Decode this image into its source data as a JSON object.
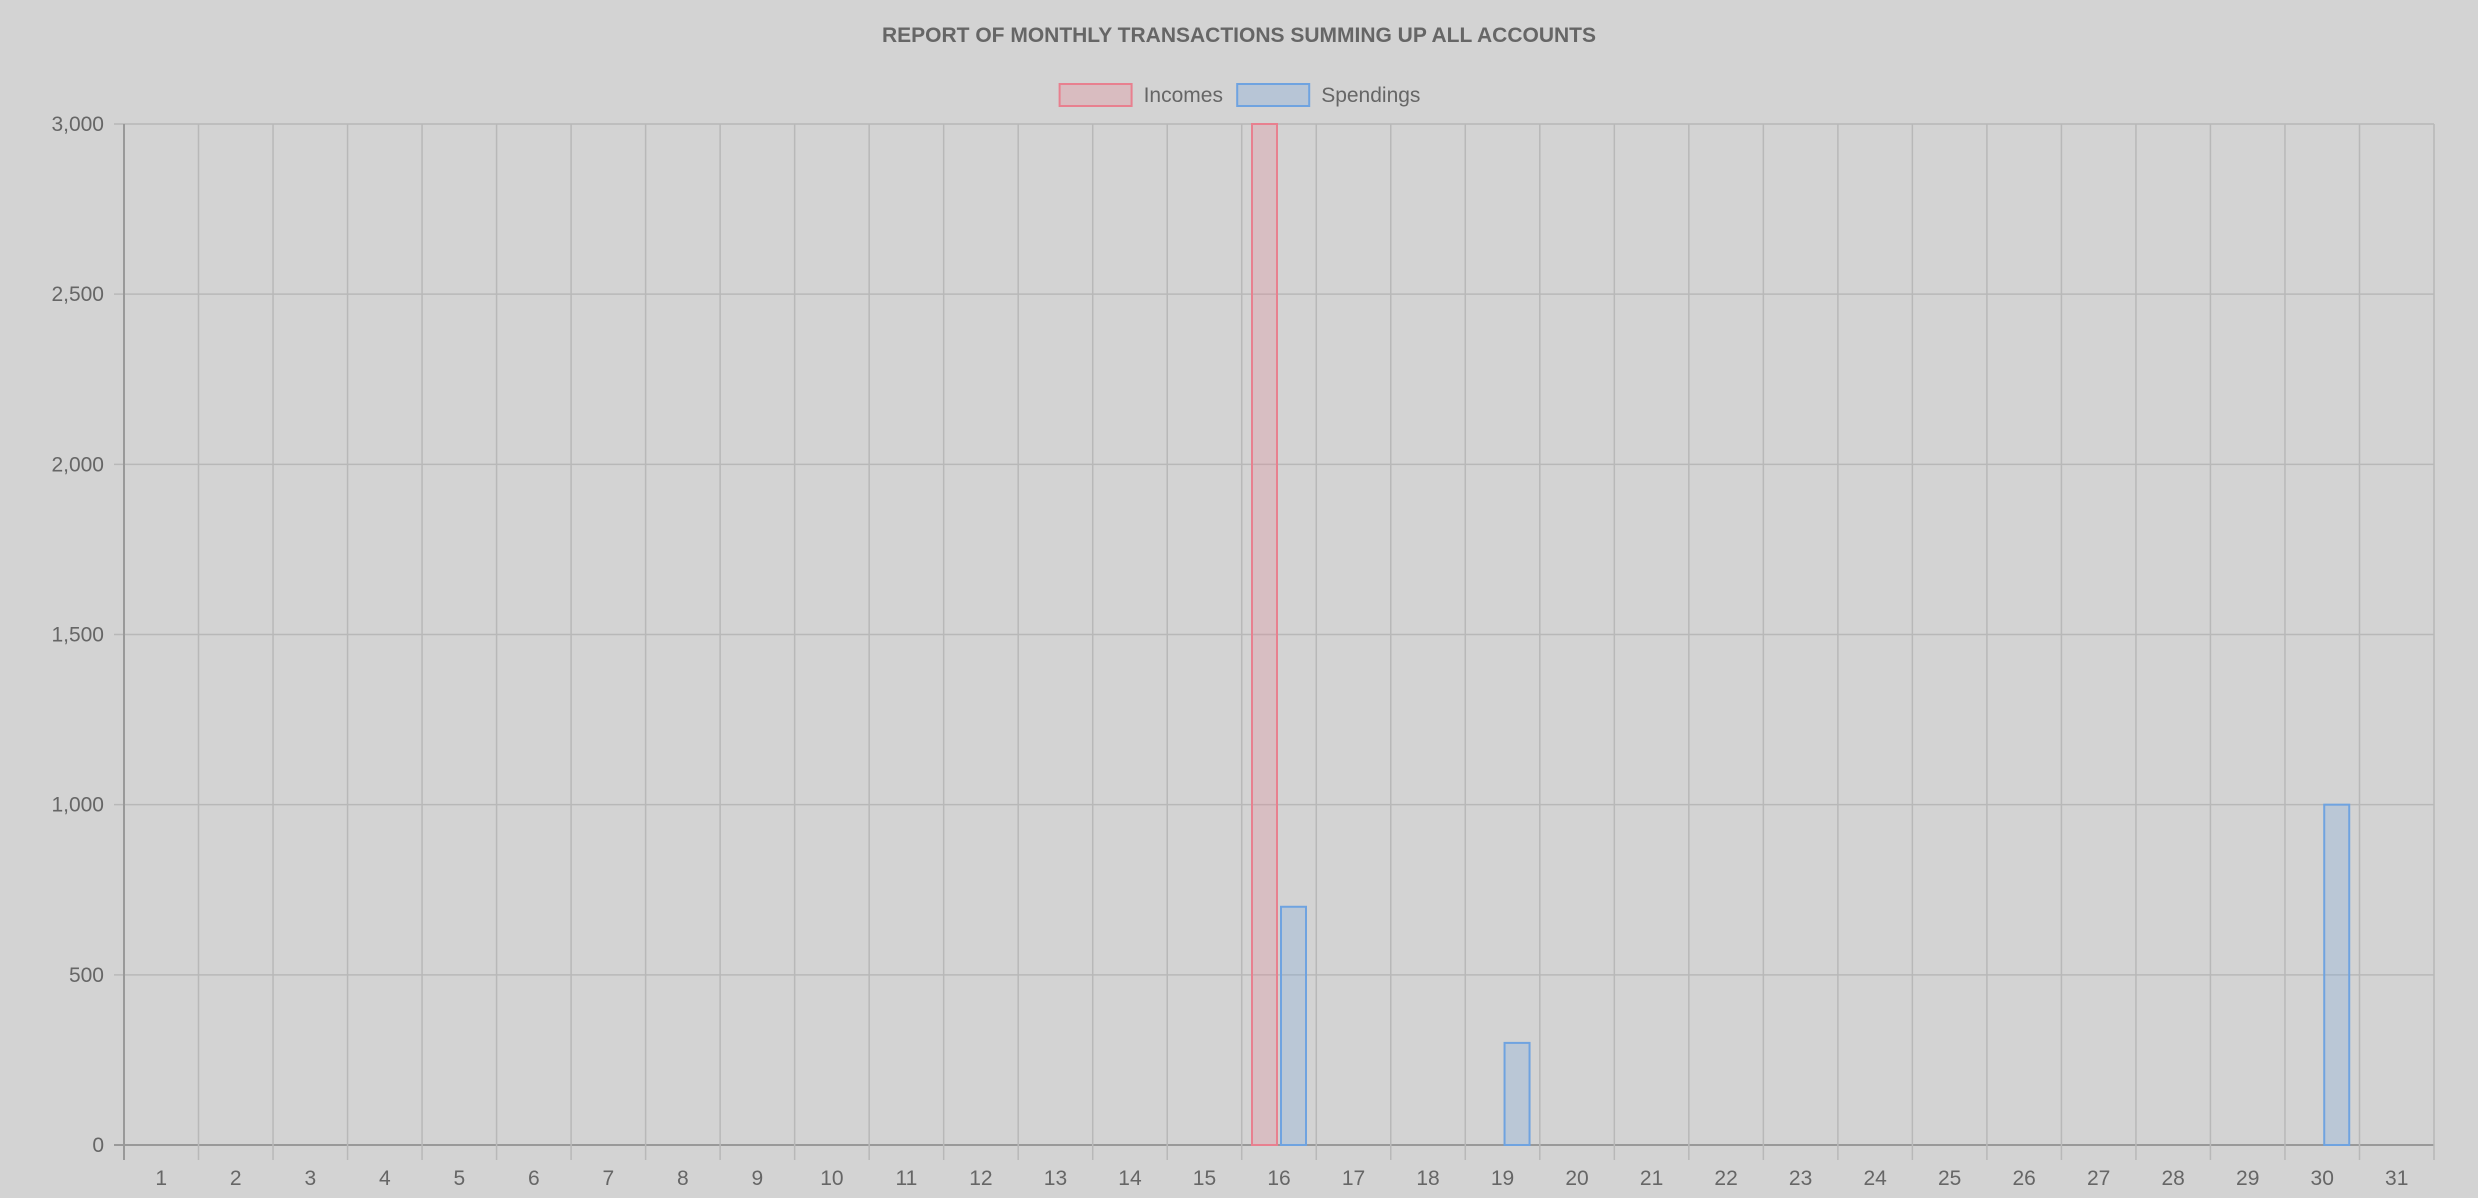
{
  "chart_data": {
    "type": "bar",
    "title": "REPORT OF MONTHLY TRANSACTIONS SUMMING UP ALL ACCOUNTS",
    "xlabel": "",
    "ylabel": "",
    "categories": [
      "1",
      "2",
      "3",
      "4",
      "5",
      "6",
      "7",
      "8",
      "9",
      "10",
      "11",
      "12",
      "13",
      "14",
      "15",
      "16",
      "17",
      "18",
      "19",
      "20",
      "21",
      "22",
      "23",
      "24",
      "25",
      "26",
      "27",
      "28",
      "29",
      "30",
      "31"
    ],
    "series": [
      {
        "name": "Incomes",
        "color": "#e8808f",
        "values": [
          0,
          0,
          0,
          0,
          0,
          0,
          0,
          0,
          0,
          0,
          0,
          0,
          0,
          0,
          0,
          3000,
          0,
          0,
          0,
          0,
          0,
          0,
          0,
          0,
          0,
          0,
          0,
          0,
          0,
          0,
          0
        ]
      },
      {
        "name": "Spendings",
        "color": "#6fa3e0",
        "values": [
          0,
          0,
          0,
          0,
          0,
          0,
          0,
          0,
          0,
          0,
          0,
          0,
          0,
          0,
          0,
          700,
          0,
          0,
          300,
          0,
          0,
          0,
          0,
          0,
          0,
          0,
          0,
          0,
          0,
          1000,
          0
        ]
      }
    ],
    "ylim": [
      0,
      3000
    ],
    "yticks": [
      "0",
      "500",
      "1,000",
      "1,500",
      "2,000",
      "2,500",
      "3,000"
    ],
    "ytick_values": [
      0,
      500,
      1000,
      1500,
      2000,
      2500,
      3000
    ],
    "grid": true,
    "legend_position": "top-center"
  }
}
